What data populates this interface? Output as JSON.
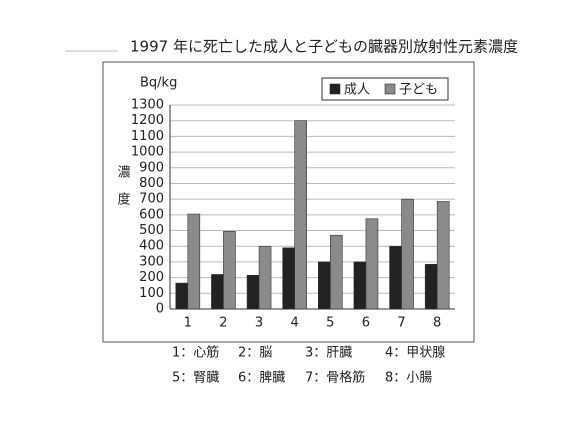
{
  "chart_data": {
    "type": "bar",
    "title": "1997 年に死亡した成人と子どもの臓器別放射性元素濃度",
    "y_unit": "Bq/kg",
    "y_label": "濃度",
    "categories": [
      "1",
      "2",
      "3",
      "4",
      "5",
      "6",
      "7",
      "8"
    ],
    "series": [
      {
        "name": "成人",
        "color": "#222222",
        "values": [
          165,
          220,
          215,
          390,
          300,
          300,
          400,
          285
        ]
      },
      {
        "name": "子ども",
        "color": "#8a8a8a",
        "values": [
          605,
          495,
          400,
          1200,
          470,
          575,
          700,
          685
        ]
      }
    ],
    "ylim": [
      0,
      1300
    ],
    "yticks": [
      0,
      100,
      200,
      300,
      400,
      500,
      600,
      700,
      800,
      900,
      1000,
      1100,
      1200,
      1300
    ],
    "grid": true,
    "legend": "top-right",
    "category_key": [
      "1：心筋",
      "2：脳",
      "3：肝臓",
      "4：甲状腺",
      "5：腎臓",
      "6：脾臓",
      "7：骨格筋",
      "8：小腸"
    ]
  }
}
